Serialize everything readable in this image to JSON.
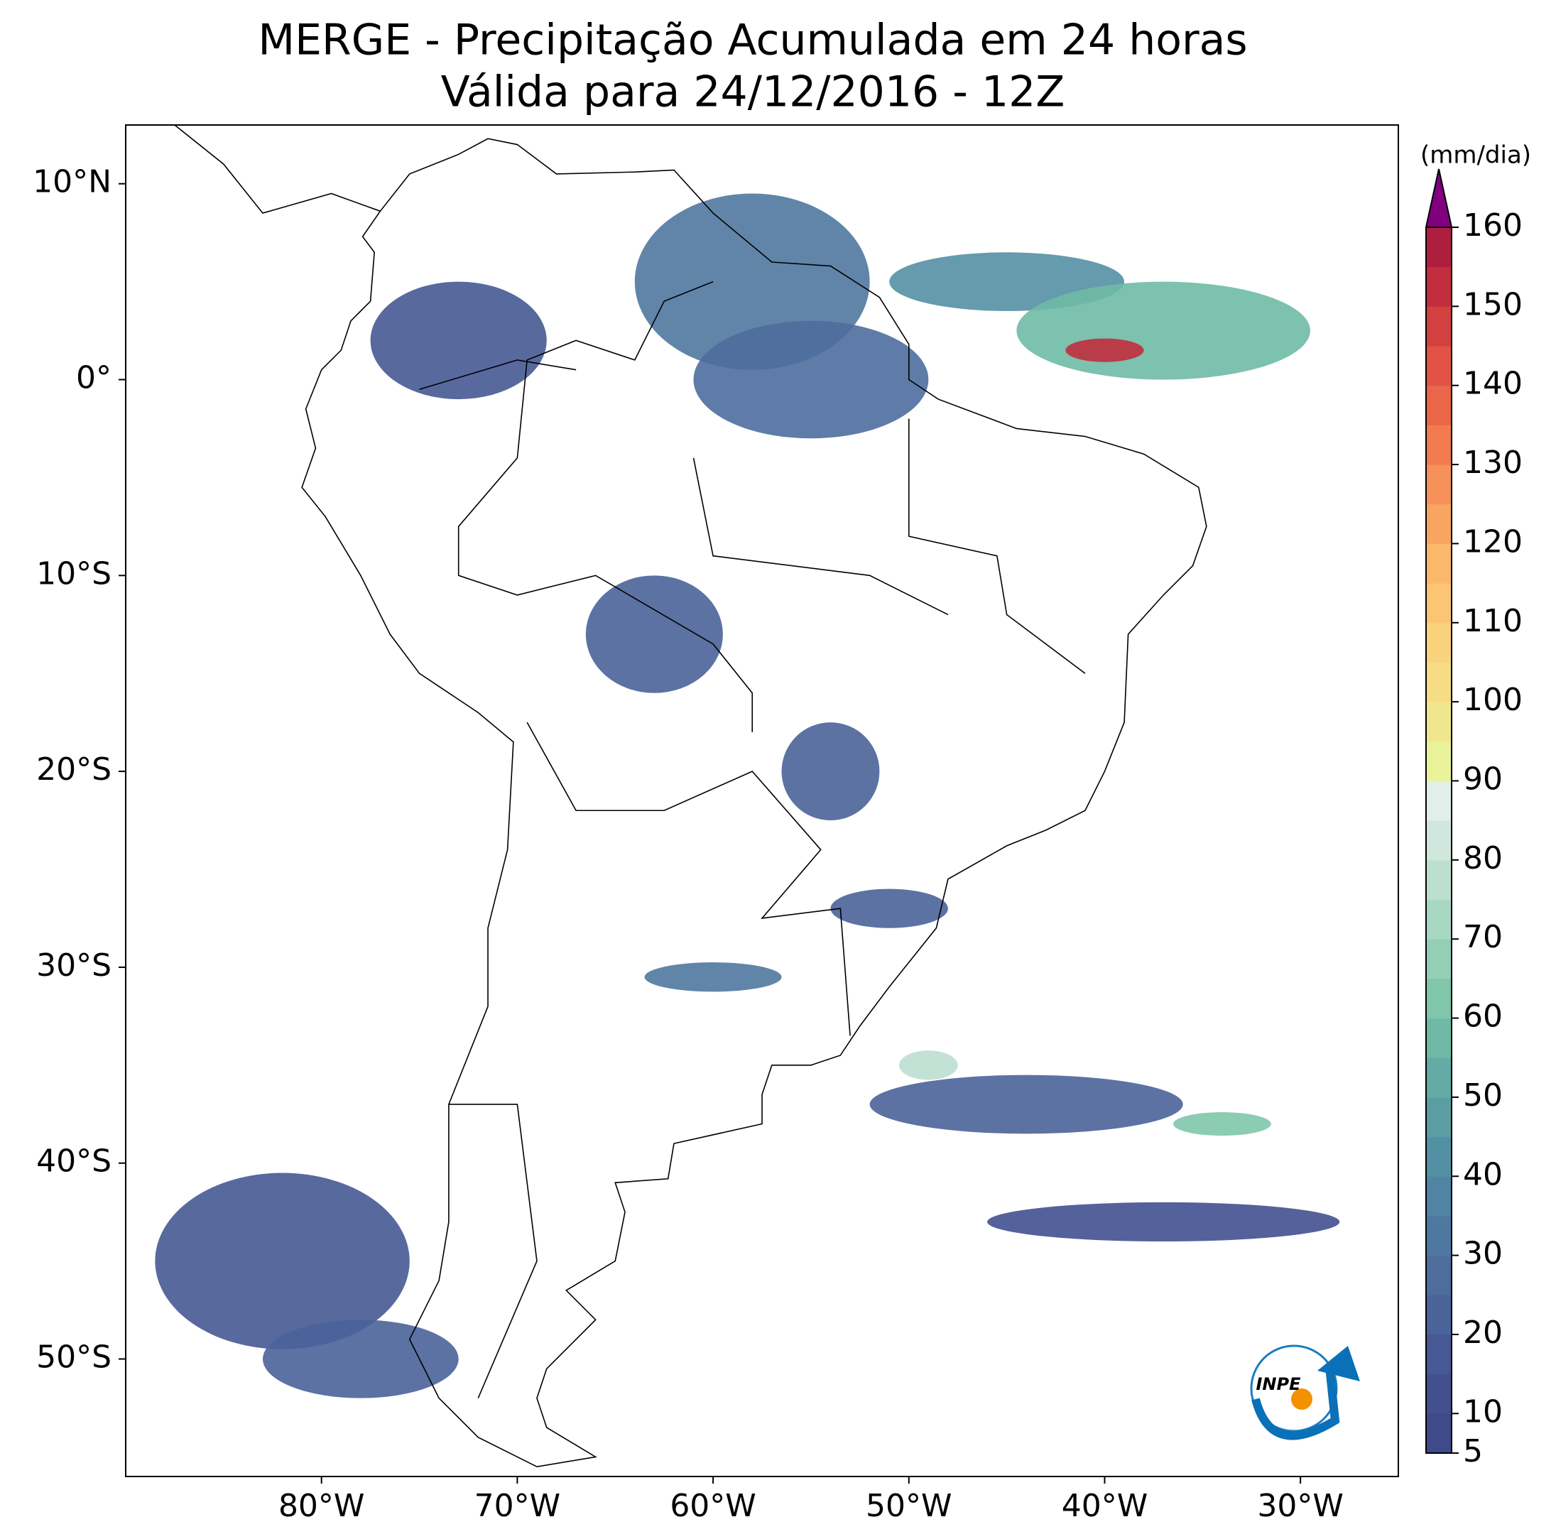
{
  "chart_data": {
    "type": "map",
    "title": "MERGE - Precipitação Acumulada em 24 horas",
    "subtitle": "Válida para 24/12/2016 - 12Z",
    "xlim": [
      -90,
      -25
    ],
    "ylim": [
      -56,
      13
    ],
    "xticks": [
      {
        "value": -80,
        "label": "80°W"
      },
      {
        "value": -70,
        "label": "70°W"
      },
      {
        "value": -60,
        "label": "60°W"
      },
      {
        "value": -50,
        "label": "50°W"
      },
      {
        "value": -40,
        "label": "40°W"
      },
      {
        "value": -30,
        "label": "30°W"
      }
    ],
    "yticks": [
      {
        "value": 10,
        "label": "10°N"
      },
      {
        "value": 0,
        "label": "0°"
      },
      {
        "value": -10,
        "label": "10°S"
      },
      {
        "value": -20,
        "label": "20°S"
      },
      {
        "value": -30,
        "label": "30°S"
      },
      {
        "value": -40,
        "label": "40°S"
      },
      {
        "value": -50,
        "label": "50°S"
      }
    ],
    "colorbar": {
      "label": "(mm/dia)",
      "lim": [
        5,
        160
      ],
      "ticks": [
        5,
        10,
        20,
        30,
        40,
        50,
        60,
        70,
        80,
        90,
        100,
        110,
        120,
        130,
        140,
        150,
        160
      ],
      "levels": [
        5,
        10,
        15,
        20,
        25,
        30,
        35,
        40,
        45,
        50,
        55,
        60,
        65,
        70,
        75,
        80,
        85,
        90,
        95,
        100,
        105,
        110,
        115,
        120,
        125,
        130,
        135,
        140,
        145,
        150,
        155,
        160
      ],
      "colors": [
        "#3e4a89",
        "#42508f",
        "#465994",
        "#4a6399",
        "#4e6d9d",
        "#4f78a0",
        "#5183a2",
        "#5490a3",
        "#5a9ea4",
        "#63aca5",
        "#6fbaa6",
        "#7fc6ab",
        "#94cfb5",
        "#a9d8c2",
        "#bddfd0",
        "#d0e7de",
        "#e2eeea",
        "#eaf29a",
        "#f0e68d",
        "#f5dc85",
        "#f9d27e",
        "#fbc575",
        "#fbb86c",
        "#f9a562",
        "#f6915a",
        "#f27b50",
        "#eb6649",
        "#e05344",
        "#d24140",
        "#c22e3e",
        "#ae1e3e"
      ],
      "extend_color": "#800080"
    },
    "cells": [
      {
        "lon": -58,
        "lat": 5,
        "lon_span": 12,
        "lat_span": 9,
        "value": 30
      },
      {
        "lon": -45,
        "lat": 5,
        "lon_span": 12,
        "lat_span": 3,
        "value": 40
      },
      {
        "lon": -37,
        "lat": 2.5,
        "lon_span": 15,
        "lat_span": 5,
        "value": 55
      },
      {
        "lon": -40,
        "lat": 1.5,
        "lon_span": 4,
        "lat_span": 1.2,
        "value": 150
      },
      {
        "lon": -55,
        "lat": 0,
        "lon_span": 12,
        "lat_span": 6,
        "value": 25
      },
      {
        "lon": -73,
        "lat": 2,
        "lon_span": 9,
        "lat_span": 6,
        "value": 15
      },
      {
        "lon": -63,
        "lat": -13,
        "lon_span": 7,
        "lat_span": 6,
        "value": 20
      },
      {
        "lon": -54,
        "lat": -20,
        "lon_span": 5,
        "lat_span": 5,
        "value": 20
      },
      {
        "lon": -51,
        "lat": -27,
        "lon_span": 6,
        "lat_span": 2,
        "value": 20
      },
      {
        "lon": -60,
        "lat": -30.5,
        "lon_span": 7,
        "lat_span": 1.5,
        "value": 30
      },
      {
        "lon": -44,
        "lat": -37,
        "lon_span": 16,
        "lat_span": 3,
        "value": 20
      },
      {
        "lon": -34,
        "lat": -38,
        "lon_span": 5,
        "lat_span": 1.2,
        "value": 60
      },
      {
        "lon": -82,
        "lat": -45,
        "lon_span": 13,
        "lat_span": 9,
        "value": 15
      },
      {
        "lon": -78,
        "lat": -50,
        "lon_span": 10,
        "lat_span": 4,
        "value": 20
      },
      {
        "lon": -37,
        "lat": -43,
        "lon_span": 18,
        "lat_span": 2,
        "value": 10
      },
      {
        "lon": -49,
        "lat": -35,
        "lon_span": 3,
        "lat_span": 1.5,
        "value": 75
      }
    ],
    "logo": "INPE"
  }
}
